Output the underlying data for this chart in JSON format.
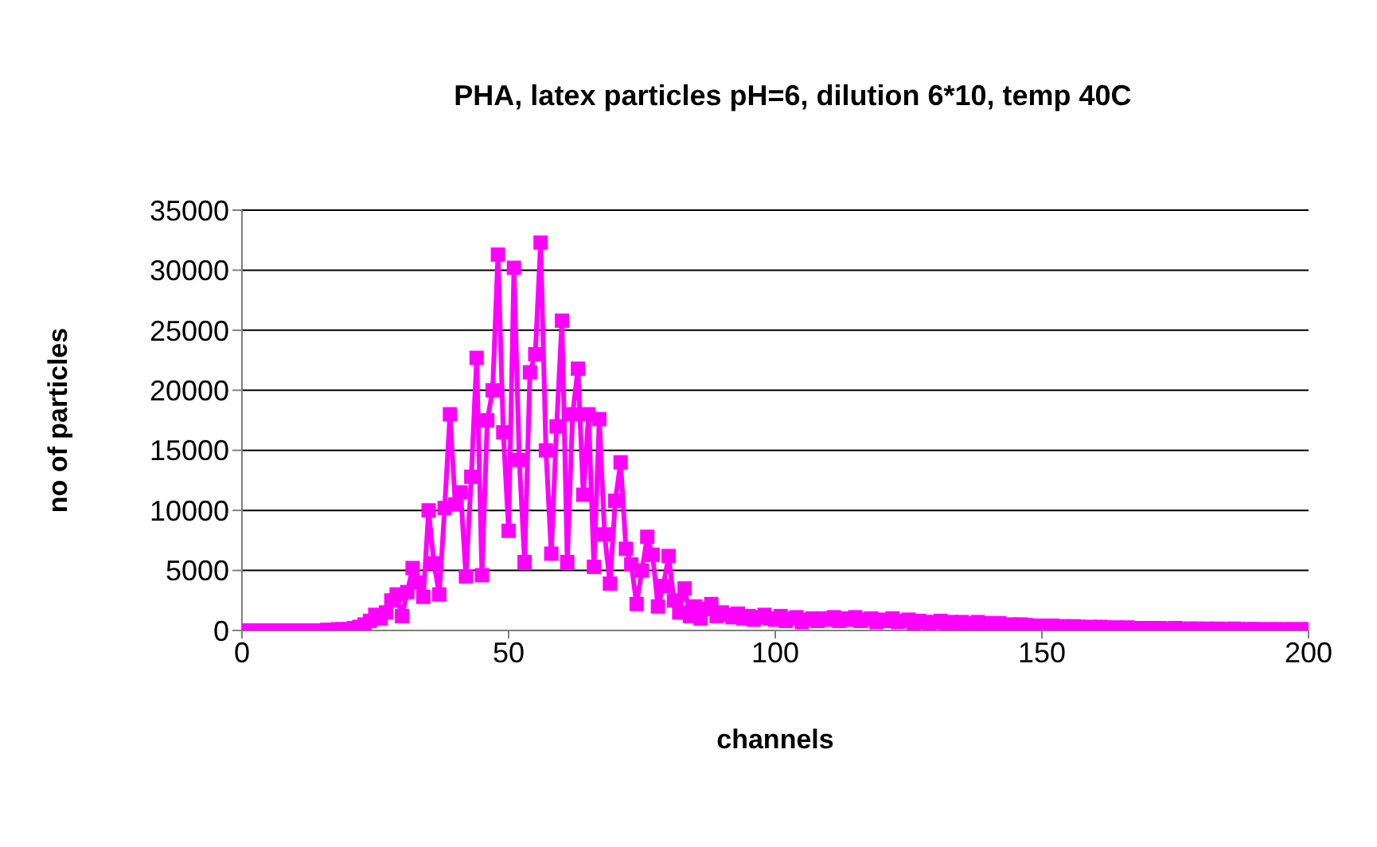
{
  "chart_data": {
    "type": "line",
    "title": "PHA, latex particles pH=6, dilution 6*10, temp 40C",
    "xlabel": "channels",
    "ylabel": "no of particles",
    "x": [
      0,
      1,
      2,
      3,
      4,
      5,
      6,
      7,
      8,
      9,
      10,
      11,
      12,
      13,
      14,
      15,
      16,
      17,
      18,
      19,
      20,
      21,
      22,
      23,
      24,
      25,
      26,
      27,
      28,
      29,
      30,
      31,
      32,
      33,
      34,
      35,
      36,
      37,
      38,
      39,
      40,
      41,
      42,
      43,
      44,
      45,
      46,
      47,
      48,
      49,
      50,
      51,
      52,
      53,
      54,
      55,
      56,
      57,
      58,
      59,
      60,
      61,
      62,
      63,
      64,
      65,
      66,
      67,
      68,
      69,
      70,
      71,
      72,
      73,
      74,
      75,
      76,
      77,
      78,
      79,
      80,
      81,
      82,
      83,
      84,
      85,
      86,
      87,
      88,
      89,
      90,
      91,
      92,
      93,
      94,
      95,
      96,
      97,
      98,
      99,
      100,
      101,
      102,
      103,
      104,
      105,
      106,
      107,
      108,
      109,
      110,
      111,
      112,
      113,
      114,
      115,
      116,
      117,
      118,
      119,
      120,
      121,
      122,
      123,
      124,
      125,
      126,
      127,
      128,
      129,
      130,
      131,
      132,
      133,
      134,
      135,
      136,
      137,
      138,
      139,
      140,
      141,
      142,
      143,
      144,
      145,
      146,
      147,
      148,
      149,
      150,
      151,
      152,
      153,
      154,
      155,
      156,
      157,
      158,
      159,
      160,
      161,
      162,
      163,
      164,
      165,
      166,
      167,
      168,
      169,
      170,
      171,
      172,
      173,
      174,
      175,
      176,
      177,
      178,
      179,
      180,
      181,
      182,
      183,
      184,
      185,
      186,
      187,
      188,
      189,
      190,
      191,
      192,
      193,
      194,
      195,
      196,
      197,
      198,
      199,
      200
    ],
    "series": [
      {
        "color": "#ff00ff",
        "values": [
          0,
          0,
          0,
          0,
          0,
          0,
          0,
          0,
          0,
          0,
          0,
          0,
          0,
          0,
          0,
          0,
          50,
          50,
          100,
          100,
          100,
          200,
          300,
          500,
          800,
          1300,
          1000,
          1500,
          2500,
          3000,
          1200,
          3200,
          5200,
          4000,
          2800,
          10000,
          5600,
          3000,
          10200,
          18000,
          10500,
          11500,
          4500,
          12800,
          22700,
          4600,
          17500,
          20000,
          31300,
          16500,
          8300,
          30200,
          14200,
          5700,
          21500,
          23000,
          32300,
          15000,
          6400,
          17000,
          25800,
          5700,
          18000,
          21800,
          11300,
          18000,
          5300,
          17600,
          8000,
          3900,
          10800,
          14000,
          6800,
          5500,
          2200,
          5000,
          7800,
          6300,
          2000,
          3700,
          6200,
          2500,
          1500,
          3500,
          1200,
          2000,
          1000,
          1800,
          2200,
          1200,
          1500,
          1300,
          1100,
          1400,
          1000,
          1200,
          900,
          1100,
          1300,
          1000,
          900,
          1200,
          800,
          1000,
          1100,
          700,
          900,
          1000,
          800,
          1000,
          900,
          1100,
          800,
          1000,
          900,
          1100,
          800,
          900,
          1000,
          700,
          900,
          800,
          1000,
          700,
          800,
          900,
          600,
          800,
          700,
          600,
          700,
          800,
          600,
          700,
          600,
          700,
          500,
          600,
          700,
          500,
          600,
          500,
          600,
          450,
          500,
          400,
          500,
          450,
          400,
          350,
          400,
          350,
          400,
          300,
          350,
          300,
          350,
          300,
          250,
          300,
          250,
          300,
          250,
          200,
          250,
          200,
          250,
          200,
          200,
          150,
          200,
          150,
          200,
          150,
          150,
          200,
          150,
          100,
          150,
          150,
          100,
          150,
          100,
          150,
          100,
          100,
          150,
          100,
          100,
          100,
          100,
          100,
          50,
          100,
          100,
          50,
          100,
          100,
          50,
          100,
          100
        ]
      }
    ],
    "xlim": [
      0,
      200
    ],
    "xticks": [
      0,
      50,
      100,
      150,
      200
    ],
    "ylim": [
      0,
      35000
    ],
    "yticks": [
      0,
      5000,
      10000,
      15000,
      20000,
      25000,
      30000,
      35000
    ],
    "grid": "y",
    "legend": false,
    "marker": "square",
    "line_style": "solid"
  }
}
